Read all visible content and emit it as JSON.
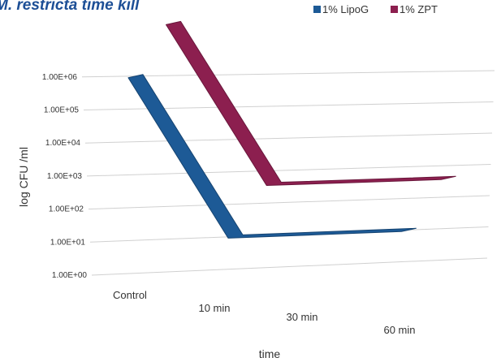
{
  "chart_data": {
    "type": "line",
    "title": "M. restricta time kill",
    "xlabel": "time",
    "ylabel": "log CFU /ml",
    "categories": [
      "Control",
      "10 min",
      "30 min",
      "60 min"
    ],
    "y_ticks": [
      "1.00E+00",
      "1.00E+01",
      "1.00E+02",
      "1.00E+03",
      "1.00E+04",
      "1.00E+05",
      "1.00E+06"
    ],
    "y_scale": "log",
    "ylim": [
      1,
      1000000
    ],
    "style": "3d-line",
    "grid": true,
    "legend_position": "top-right",
    "series": [
      {
        "name": "1% LipoG",
        "values": [
          1000000,
          10,
          10,
          10
        ],
        "color": "#1d5a96"
      },
      {
        "name": "1% ZPT",
        "values": [
          10000000,
          100,
          100,
          100
        ],
        "color": "#8c1f4f"
      }
    ]
  }
}
